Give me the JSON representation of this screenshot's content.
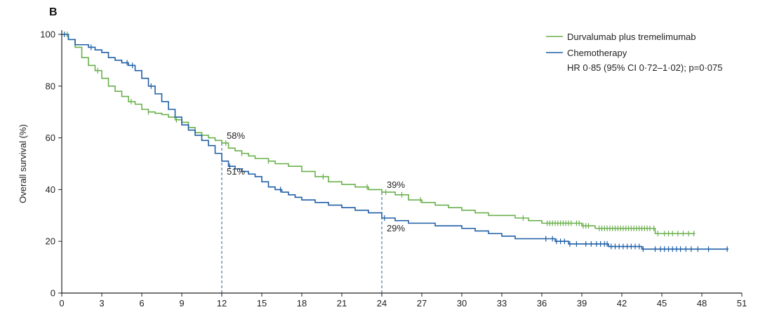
{
  "panel_label": "B",
  "chart_data": {
    "type": "line",
    "step": true,
    "title": "",
    "xlabel": "",
    "ylabel": "Overall survival (%)",
    "xlim": [
      0,
      51
    ],
    "ylim": [
      0,
      100
    ],
    "x_ticks": [
      0,
      3,
      6,
      9,
      12,
      15,
      18,
      21,
      24,
      27,
      30,
      33,
      36,
      39,
      42,
      45,
      48,
      51
    ],
    "y_ticks": [
      0,
      20,
      40,
      60,
      80,
      100
    ],
    "grid": false,
    "legend_position": "top-right",
    "series": [
      {
        "name": "Durvalumab plus tremelimumab",
        "color": "#6ab04c",
        "points": [
          [
            0,
            100
          ],
          [
            0.5,
            98
          ],
          [
            1,
            95
          ],
          [
            1.5,
            91
          ],
          [
            2,
            88
          ],
          [
            2.5,
            86
          ],
          [
            3,
            83
          ],
          [
            3.5,
            80
          ],
          [
            4,
            78
          ],
          [
            4.5,
            76
          ],
          [
            5,
            74
          ],
          [
            5.5,
            73
          ],
          [
            6,
            71
          ],
          [
            6.5,
            70
          ],
          [
            7,
            69.5
          ],
          [
            7.5,
            69
          ],
          [
            8,
            68
          ],
          [
            8.5,
            67
          ],
          [
            9,
            66
          ],
          [
            9.5,
            64
          ],
          [
            10,
            62
          ],
          [
            10.5,
            61
          ],
          [
            11,
            60
          ],
          [
            11.5,
            59
          ],
          [
            12,
            58
          ],
          [
            12.5,
            56
          ],
          [
            13,
            55
          ],
          [
            13.5,
            54
          ],
          [
            14,
            53
          ],
          [
            14.5,
            52
          ],
          [
            15,
            52
          ],
          [
            15.5,
            51
          ],
          [
            16,
            50
          ],
          [
            17,
            49
          ],
          [
            18,
            47
          ],
          [
            19,
            45
          ],
          [
            20,
            43
          ],
          [
            21,
            42
          ],
          [
            22,
            41
          ],
          [
            23,
            40
          ],
          [
            24,
            39
          ],
          [
            25,
            38
          ],
          [
            26,
            36
          ],
          [
            27,
            35
          ],
          [
            28,
            34
          ],
          [
            29,
            33
          ],
          [
            30,
            32
          ],
          [
            31,
            31
          ],
          [
            32,
            30
          ],
          [
            33,
            30
          ],
          [
            34,
            29
          ],
          [
            35,
            28
          ],
          [
            36,
            27
          ],
          [
            38,
            27
          ],
          [
            39,
            26
          ],
          [
            40,
            25
          ],
          [
            42,
            25
          ],
          [
            44,
            25
          ],
          [
            44.5,
            23
          ],
          [
            46,
            23
          ],
          [
            47.5,
            23
          ]
        ],
        "censor_x": [
          0.4,
          2.7,
          5.2,
          6.5,
          8.6,
          12.3,
          13.5,
          15.5,
          19.6,
          22.9,
          24.3,
          25.5,
          26.9,
          34.6,
          36.4,
          36.6,
          36.8,
          37.0,
          37.2,
          37.4,
          37.6,
          37.8,
          38.0,
          38.2,
          38.6,
          38.8,
          39.1,
          39.3,
          39.5,
          40.3,
          40.5,
          40.7,
          40.9,
          41.1,
          41.3,
          41.5,
          41.7,
          41.9,
          42.1,
          42.3,
          42.5,
          42.7,
          42.9,
          43.1,
          43.3,
          43.5,
          43.7,
          43.9,
          44.1,
          44.4,
          44.7,
          45.2,
          45.5,
          45.8,
          46.2,
          46.6,
          47.0,
          47.4
        ],
        "callouts": [
          {
            "x": 12,
            "y": 58,
            "label": "58%"
          },
          {
            "x": 24,
            "y": 39,
            "label": "39%"
          }
        ]
      },
      {
        "name": "Chemotherapy",
        "color": "#1f5fa6",
        "points": [
          [
            0,
            100
          ],
          [
            0.5,
            98
          ],
          [
            1,
            96
          ],
          [
            1.5,
            96
          ],
          [
            2,
            95
          ],
          [
            2.5,
            94
          ],
          [
            3,
            93
          ],
          [
            3.5,
            91
          ],
          [
            4,
            90
          ],
          [
            4.5,
            89
          ],
          [
            5,
            88
          ],
          [
            5.5,
            86
          ],
          [
            6,
            83
          ],
          [
            6.5,
            80
          ],
          [
            7,
            77
          ],
          [
            7.5,
            74
          ],
          [
            8,
            71
          ],
          [
            8.5,
            68
          ],
          [
            9,
            65
          ],
          [
            9.5,
            63
          ],
          [
            10,
            61
          ],
          [
            10.5,
            59
          ],
          [
            11,
            57
          ],
          [
            11.5,
            54
          ],
          [
            12,
            51
          ],
          [
            12.5,
            49
          ],
          [
            13,
            48
          ],
          [
            13.5,
            47
          ],
          [
            14,
            46
          ],
          [
            14.5,
            45
          ],
          [
            15,
            43
          ],
          [
            15.5,
            41
          ],
          [
            16,
            40
          ],
          [
            16.5,
            39
          ],
          [
            17,
            38
          ],
          [
            17.5,
            37
          ],
          [
            18,
            36
          ],
          [
            19,
            35
          ],
          [
            20,
            34
          ],
          [
            21,
            33
          ],
          [
            22,
            32
          ],
          [
            23,
            31
          ],
          [
            24,
            29
          ],
          [
            25,
            28
          ],
          [
            26,
            27
          ],
          [
            27,
            27
          ],
          [
            28,
            26
          ],
          [
            29,
            26
          ],
          [
            30,
            25
          ],
          [
            31,
            24
          ],
          [
            32,
            23
          ],
          [
            33,
            22
          ],
          [
            34,
            21
          ],
          [
            35,
            21
          ],
          [
            36,
            21
          ],
          [
            37,
            20
          ],
          [
            38,
            19
          ],
          [
            40,
            19
          ],
          [
            41,
            18
          ],
          [
            42,
            18
          ],
          [
            43,
            18
          ],
          [
            43.5,
            17
          ],
          [
            45,
            17
          ],
          [
            48,
            17
          ],
          [
            50,
            17
          ]
        ],
        "censor_x": [
          0.2,
          2.2,
          4.9,
          5.3,
          6.7,
          12.6,
          16.4,
          24.2,
          36.3,
          36.8,
          37.1,
          37.4,
          37.7,
          38.1,
          38.6,
          39.3,
          39.7,
          40.1,
          40.4,
          40.7,
          40.9,
          41.2,
          41.5,
          41.8,
          42.1,
          42.4,
          42.7,
          43.0,
          43.3,
          43.6,
          44.5,
          44.9,
          45.2,
          45.5,
          45.8,
          46.1,
          46.4,
          46.8,
          47.2,
          47.7,
          48.5,
          49.9
        ],
        "callouts": [
          {
            "x": 12,
            "y": 51,
            "label": "51%"
          },
          {
            "x": 24,
            "y": 29,
            "label": "29%"
          }
        ]
      }
    ],
    "annotation": "HR 0·85 (95% CI 0·72–1·02); p=0·075",
    "reference_lines_x": [
      12,
      24
    ]
  }
}
